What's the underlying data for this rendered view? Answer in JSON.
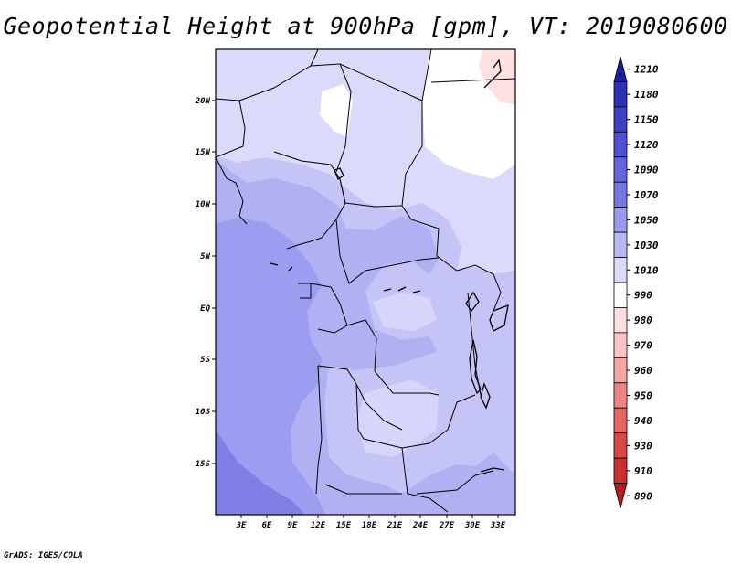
{
  "title": "Geopotential Height at 900hPa [gpm], VT: 2019080600",
  "credit": "GrADS: IGES/COLA",
  "map": {
    "lat_labels": [
      "20N",
      "15N",
      "10N",
      "5N",
      "EQ",
      "5S",
      "10S",
      "15S"
    ],
    "lon_labels": [
      "3E",
      "6E",
      "9E",
      "12E",
      "15E",
      "18E",
      "21E",
      "24E",
      "27E",
      "30E",
      "33E"
    ]
  },
  "colorbar": {
    "levels": [
      "1210",
      "1180",
      "1150",
      "1120",
      "1090",
      "1070",
      "1050",
      "1030",
      "1010",
      "990",
      "980",
      "970",
      "960",
      "950",
      "940",
      "930",
      "910",
      "890"
    ],
    "colors": [
      "#1e1ea0",
      "#2f2fb4",
      "#4040c4",
      "#5050d2",
      "#6363dc",
      "#7575e4",
      "#9a9af0",
      "#b8b8f4",
      "#dadafa",
      "#ffffff",
      "#ffe0e0",
      "#fcc4c4",
      "#f6a4a4",
      "#ee8484",
      "#e46464",
      "#d84646",
      "#c83030",
      "#b01e1e"
    ]
  }
}
